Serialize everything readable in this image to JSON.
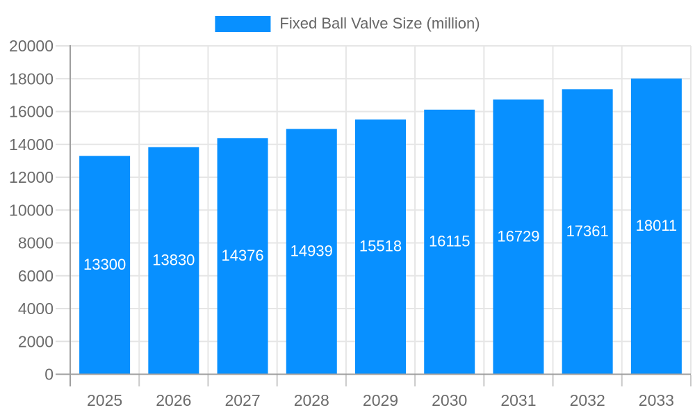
{
  "chart_data": {
    "type": "bar",
    "series_name": "Fixed Ball Valve Size (million)",
    "categories": [
      "2025",
      "2026",
      "2027",
      "2028",
      "2029",
      "2030",
      "2031",
      "2032",
      "2033"
    ],
    "values": [
      13300,
      13830,
      14376,
      14939,
      15518,
      16115,
      16729,
      17361,
      18011
    ],
    "xlabel": "",
    "ylabel": "",
    "ylim": [
      0,
      20000
    ],
    "yticks": [
      0,
      2000,
      4000,
      6000,
      8000,
      10000,
      12000,
      14000,
      16000,
      18000,
      20000
    ],
    "grid": true,
    "legend_position": "top",
    "value_labels_position": "center-of-bar",
    "colors": {
      "bar": "#0890ff",
      "grid": "#e6e6e6",
      "axis": "#9e9e9e",
      "tick_mark": "#c9c9c9",
      "tick_label": "#6b6b6b",
      "value_label": "#ffffff",
      "legend_text": "#666666",
      "background": "#ffffff"
    }
  }
}
